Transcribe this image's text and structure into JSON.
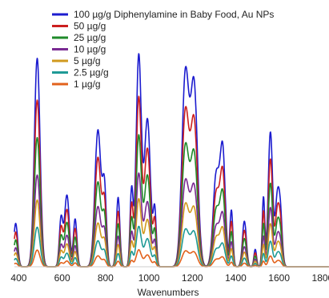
{
  "chart_data": {
    "type": "line",
    "xlabel": "Wavenumbers",
    "ylabel": "",
    "xlim": [
      380,
      1830
    ],
    "ylim": [
      0,
      100
    ],
    "xticks": [
      400,
      600,
      800,
      1000,
      1200,
      1400,
      1600,
      1800
    ],
    "grid": false,
    "legend_position": "top-right",
    "peaks": [
      {
        "center": 485,
        "width": 13,
        "rel": 0.96
      },
      {
        "center": 595,
        "width": 8,
        "rel": 0.22
      },
      {
        "center": 622,
        "width": 11,
        "rel": 0.33
      },
      {
        "center": 660,
        "width": 8,
        "rel": 0.22
      },
      {
        "center": 765,
        "width": 14,
        "rel": 0.63
      },
      {
        "center": 795,
        "width": 9,
        "rel": 0.35
      },
      {
        "center": 858,
        "width": 8,
        "rel": 0.32
      },
      {
        "center": 920,
        "width": 7,
        "rel": 0.35
      },
      {
        "center": 953,
        "width": 12,
        "rel": 0.97
      },
      {
        "center": 993,
        "width": 14,
        "rel": 0.68
      },
      {
        "center": 1027,
        "width": 7,
        "rel": 0.25
      },
      {
        "center": 1168,
        "width": 16,
        "rel": 0.88
      },
      {
        "center": 1208,
        "width": 16,
        "rel": 0.83
      },
      {
        "center": 1310,
        "width": 14,
        "rel": 0.42
      },
      {
        "center": 1340,
        "width": 12,
        "rel": 0.53
      },
      {
        "center": 1380,
        "width": 7,
        "rel": 0.26
      },
      {
        "center": 1440,
        "width": 9,
        "rel": 0.21
      },
      {
        "center": 1490,
        "width": 6,
        "rel": 0.08
      },
      {
        "center": 1528,
        "width": 6,
        "rel": 0.32
      },
      {
        "center": 1560,
        "width": 10,
        "rel": 0.62
      },
      {
        "center": 1590,
        "width": 9,
        "rel": 0.27
      },
      {
        "center": 1605,
        "width": 9,
        "rel": 0.25
      }
    ],
    "edge_peak": {
      "center": 386,
      "width": 9,
      "rel": 0.2
    },
    "series": [
      {
        "name": "100 µg/g Diphenylamine in Baby Food, Au NPs",
        "color": "#1c1ccf",
        "scale": 100
      },
      {
        "name": "50 µg/g",
        "color": "#cc1f1f",
        "scale": 80
      },
      {
        "name": "25 µg/g",
        "color": "#1f8a2a",
        "scale": 62
      },
      {
        "name": "10 µg/g",
        "color": "#7a2a92",
        "scale": 44
      },
      {
        "name": "5 µg/g",
        "color": "#d19a1e",
        "scale": 32
      },
      {
        "name": "2.5 µg/g",
        "color": "#1f9a96",
        "scale": 19
      },
      {
        "name": "1 µg/g",
        "color": "#e2621c",
        "scale": 8
      }
    ]
  }
}
